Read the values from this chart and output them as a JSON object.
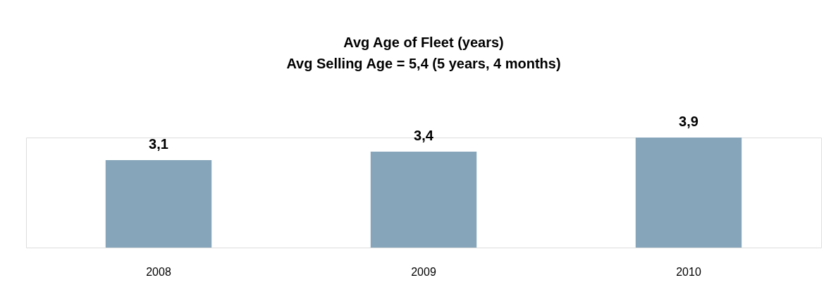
{
  "chart_data": {
    "type": "bar",
    "title": "Avg Age of Fleet (years)",
    "subtitle": "Avg Selling Age = 5,4 (5 years, 4 months)",
    "categories": [
      "2008",
      "2009",
      "2010"
    ],
    "values": [
      3.1,
      3.4,
      3.9
    ],
    "value_labels": [
      "3,1",
      "3,4",
      "3,9"
    ],
    "color": "#86a5bb"
  }
}
